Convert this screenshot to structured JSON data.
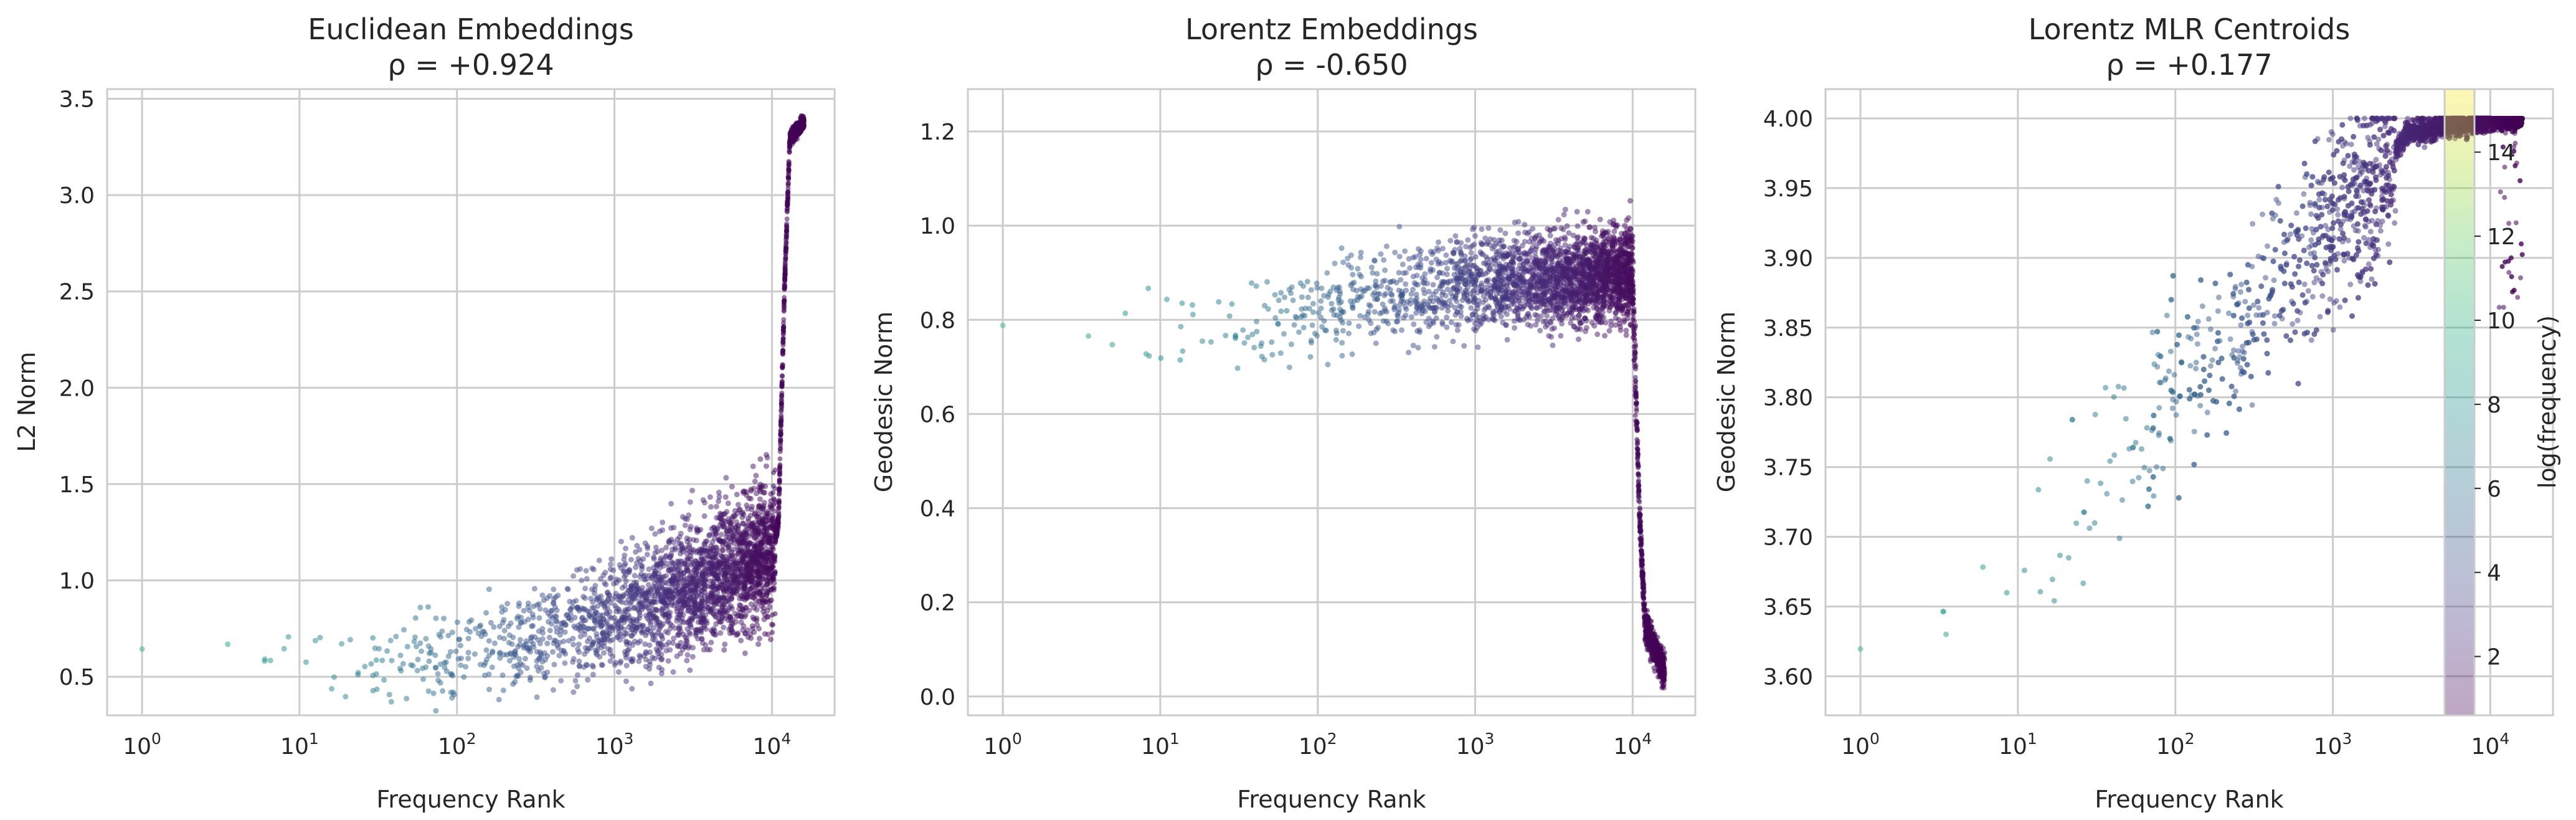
{
  "figure": {
    "colorbar": {
      "label": "log(frequency)",
      "ticks": [
        "2",
        "4",
        "6",
        "8",
        "10",
        "12",
        "14"
      ],
      "range": [
        0.6,
        15.5
      ],
      "colormap": "viridis",
      "alpha": 0.35
    }
  },
  "chart_data": [
    {
      "type": "scatter",
      "title": "Euclidean Embeddings",
      "subtitle": "ρ = +0.924",
      "xlabel": "Frequency Rank",
      "ylabel": "L2 Norm",
      "x_scale": "log",
      "xlim": [
        0.6,
        25000
      ],
      "ylim": [
        0.3,
        3.55
      ],
      "x_ticks": [
        {
          "base": "10",
          "exp": "0",
          "value": 1
        },
        {
          "base": "10",
          "exp": "1",
          "value": 10
        },
        {
          "base": "10",
          "exp": "2",
          "value": 100
        },
        {
          "base": "10",
          "exp": "3",
          "value": 1000
        },
        {
          "base": "10",
          "exp": "4",
          "value": 10000
        }
      ],
      "y_ticks": [
        "0.5",
        "1.0",
        "1.5",
        "2.0",
        "2.5",
        "3.0",
        "3.5"
      ],
      "grid": true,
      "point_count": 16000,
      "trend": [
        {
          "rank": 1,
          "value": 0.58
        },
        {
          "rank": 10,
          "value": 0.6
        },
        {
          "rank": 100,
          "value": 0.6
        },
        {
          "rank": 1000,
          "value": 0.8
        },
        {
          "rank": 10000,
          "value": 1.15
        },
        {
          "rank": 11000,
          "value": 1.3
        },
        {
          "rank": 12000,
          "value": 2.5
        },
        {
          "rank": 13000,
          "value": 3.3
        },
        {
          "rank": 16000,
          "value": 3.38
        }
      ]
    },
    {
      "type": "scatter",
      "title": "Lorentz Embeddings",
      "subtitle": "ρ = -0.650",
      "xlabel": "Frequency Rank",
      "ylabel": "Geodesic Norm",
      "x_scale": "log",
      "xlim": [
        0.6,
        25000
      ],
      "ylim": [
        -0.04,
        1.29
      ],
      "x_ticks": [
        {
          "base": "10",
          "exp": "0",
          "value": 1
        },
        {
          "base": "10",
          "exp": "1",
          "value": 10
        },
        {
          "base": "10",
          "exp": "2",
          "value": 100
        },
        {
          "base": "10",
          "exp": "3",
          "value": 1000
        },
        {
          "base": "10",
          "exp": "4",
          "value": 10000
        }
      ],
      "y_ticks": [
        "0.0",
        "0.2",
        "0.4",
        "0.6",
        "0.8",
        "1.0",
        "1.2"
      ],
      "grid": true,
      "point_count": 16000,
      "trend": [
        {
          "rank": 1,
          "value": 0.76
        },
        {
          "rank": 10,
          "value": 0.78
        },
        {
          "rank": 100,
          "value": 0.82
        },
        {
          "rank": 1000,
          "value": 0.88
        },
        {
          "rank": 10000,
          "value": 0.9
        },
        {
          "rank": 11000,
          "value": 0.4
        },
        {
          "rank": 12000,
          "value": 0.15
        },
        {
          "rank": 16000,
          "value": 0.05
        }
      ]
    },
    {
      "type": "scatter",
      "title": "Lorentz MLR Centroids",
      "subtitle": "ρ = +0.177",
      "xlabel": "Frequency Rank",
      "ylabel": "Geodesic Norm",
      "x_scale": "log",
      "xlim": [
        0.6,
        25000
      ],
      "ylim": [
        3.572,
        4.021
      ],
      "x_ticks": [
        {
          "base": "10",
          "exp": "0",
          "value": 1
        },
        {
          "base": "10",
          "exp": "1",
          "value": 10
        },
        {
          "base": "10",
          "exp": "2",
          "value": 100
        },
        {
          "base": "10",
          "exp": "3",
          "value": 1000
        },
        {
          "base": "10",
          "exp": "4",
          "value": 10000
        }
      ],
      "y_ticks": [
        "3.60",
        "3.65",
        "3.70",
        "3.75",
        "3.80",
        "3.85",
        "3.90",
        "3.95",
        "4.00"
      ],
      "grid": true,
      "point_count": 16000,
      "trend": [
        {
          "rank": 1,
          "value": 3.6
        },
        {
          "rank": 10,
          "value": 3.68
        },
        {
          "rank": 100,
          "value": 3.8
        },
        {
          "rank": 1000,
          "value": 3.92
        },
        {
          "rank": 3000,
          "value": 3.99
        },
        {
          "rank": 10000,
          "value": 4.0
        },
        {
          "rank": 16000,
          "value": 4.0
        }
      ]
    }
  ]
}
